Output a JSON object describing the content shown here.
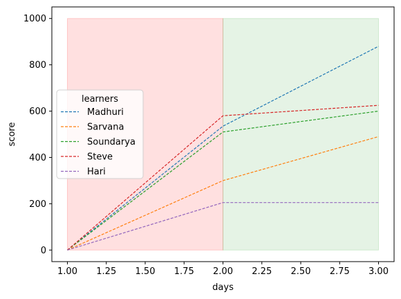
{
  "chart_data": {
    "type": "line",
    "xlabel": "days",
    "ylabel": "score",
    "xlim": [
      0.9,
      3.1
    ],
    "ylim": [
      -50,
      1050
    ],
    "x_ticks": [
      1.0,
      1.25,
      1.5,
      1.75,
      2.0,
      2.25,
      2.5,
      2.75,
      3.0
    ],
    "x_tick_labels": [
      "1.00",
      "1.25",
      "1.50",
      "1.75",
      "2.00",
      "2.25",
      "2.50",
      "2.75",
      "3.00"
    ],
    "y_ticks": [
      0,
      200,
      400,
      600,
      800,
      1000
    ],
    "y_tick_labels": [
      "0",
      "200",
      "400",
      "600",
      "800",
      "1000"
    ],
    "x": [
      1.0,
      2.0,
      3.0
    ],
    "shaded_regions": [
      {
        "x_start": 1.0,
        "x_end": 2.0,
        "y_start": 0,
        "y_end": 1000,
        "color": "#ff0000",
        "opacity": 0.12
      },
      {
        "x_start": 2.0,
        "x_end": 3.0,
        "y_start": 0,
        "y_end": 1000,
        "color": "#2ca02c",
        "opacity": 0.12
      }
    ],
    "legend": {
      "title": "learners",
      "placement": "center-left"
    },
    "line_style": "dashed",
    "grid": false,
    "series": [
      {
        "name": "Madhuri",
        "values": [
          0,
          535,
          880
        ],
        "color": "#1f77b4"
      },
      {
        "name": "Sarvana",
        "values": [
          0,
          300,
          490
        ],
        "color": "#ff7f0e"
      },
      {
        "name": "Soundarya",
        "values": [
          0,
          510,
          600
        ],
        "color": "#2ca02c"
      },
      {
        "name": "Steve",
        "values": [
          0,
          580,
          625
        ],
        "color": "#d62728"
      },
      {
        "name": "Hari",
        "values": [
          0,
          205,
          205
        ],
        "color": "#9467bd"
      }
    ]
  }
}
